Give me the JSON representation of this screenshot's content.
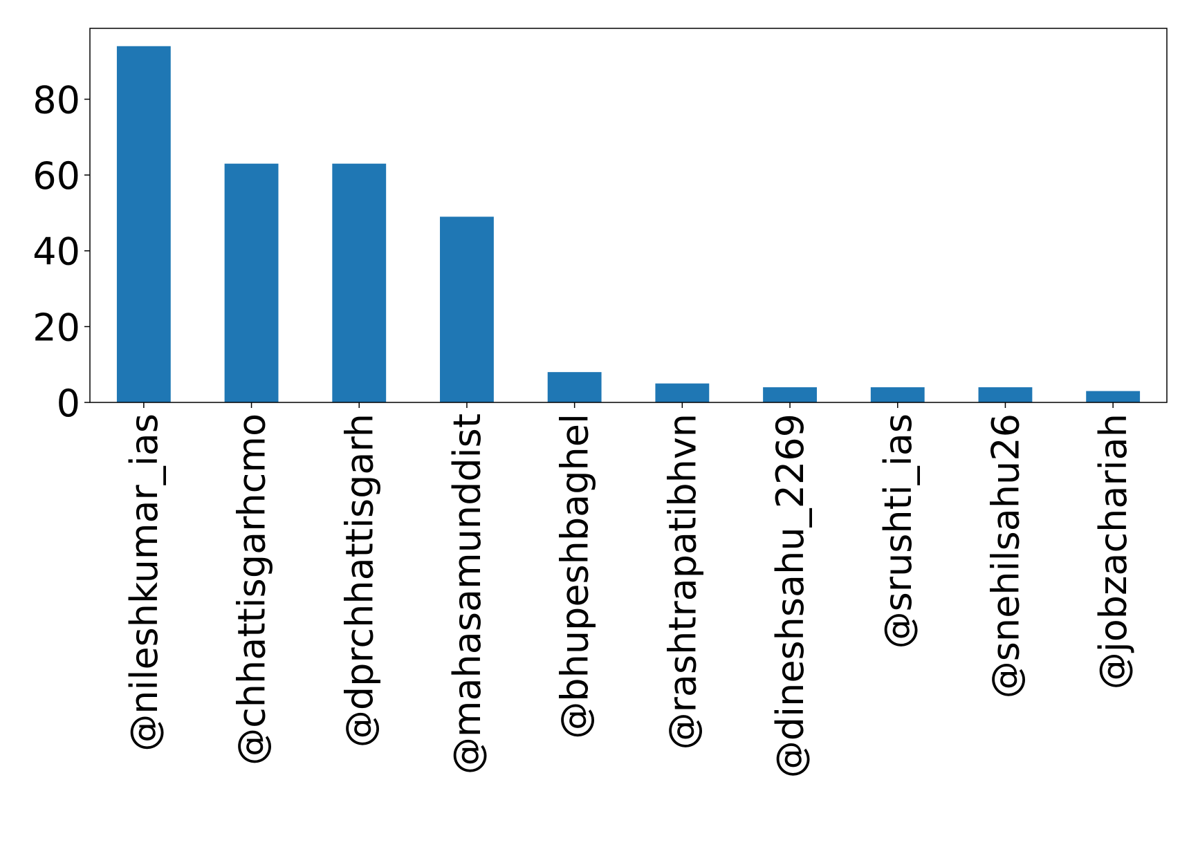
{
  "chart_data": {
    "type": "bar",
    "title": "",
    "xlabel": "",
    "ylabel": "",
    "categories": [
      "@nileshkumar_ias",
      "@chhattisgarhcmo",
      "@dprchhattisgarh",
      "@mahasamunddist",
      "@bhupeshbaghel",
      "@rashtrapatibhvn",
      "@dineshsahu_2269",
      "@srushti_ias",
      "@snehilsahu26",
      "@jobzachariah"
    ],
    "values": [
      94,
      63,
      63,
      49,
      8,
      5,
      4,
      4,
      4,
      3
    ],
    "ylim": [
      0,
      98.7
    ],
    "yticks": [
      0,
      20,
      40,
      60,
      80
    ],
    "bar_color": "#1f77b4",
    "grid": false,
    "legend": "none"
  }
}
